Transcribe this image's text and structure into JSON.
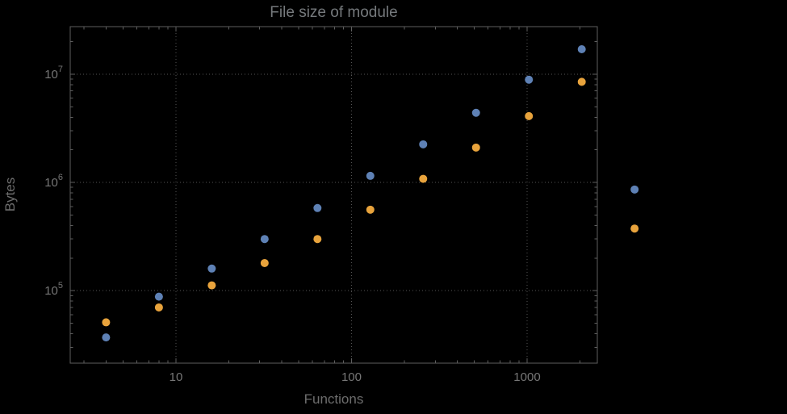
{
  "chart_data": {
    "type": "scatter",
    "title": "File size of module",
    "xlabel": "Functions",
    "ylabel": "Bytes",
    "x_scale": "log",
    "y_scale": "log",
    "xlim": [
      2.5,
      2512
    ],
    "ylim": [
      21400,
      27500000
    ],
    "grid": "dotted lines at major ticks",
    "legend": "none",
    "marker": "filled circle",
    "marker_radius": 5,
    "x_ticks": [
      {
        "value": 10,
        "label": "10"
      },
      {
        "value": 100,
        "label": "100"
      },
      {
        "value": 1000,
        "label": "1000"
      }
    ],
    "y_ticks": [
      {
        "value": 100000,
        "base": "10",
        "exp": "5"
      },
      {
        "value": 1000000,
        "base": "10",
        "exp": "6"
      },
      {
        "value": 10000000,
        "base": "10",
        "exp": "7"
      }
    ],
    "x": [
      4,
      8,
      16,
      32,
      64,
      128,
      256,
      512,
      1024,
      2048,
      4096
    ],
    "series": [
      {
        "name": "blue-series",
        "color": "#5E81B5",
        "values": [
          37000,
          88000,
          160000,
          300000,
          580000,
          1150000,
          2250000,
          4400000,
          8900000,
          17000000,
          860000
        ]
      },
      {
        "name": "orange-series",
        "color": "#E8A33C",
        "values": [
          51000,
          70000,
          112000,
          180000,
          300000,
          560000,
          1080000,
          2100000,
          4100000,
          8500000,
          375000
        ]
      }
    ]
  },
  "colors": {
    "background": "#000000",
    "frame": "#5e5e5e",
    "grid": "#555555",
    "tick_label": "#767676",
    "axis_label": "#6d6d6d",
    "title": "#75797c"
  }
}
